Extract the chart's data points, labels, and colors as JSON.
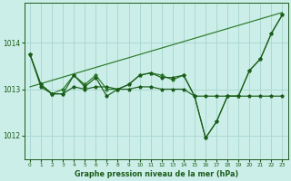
{
  "title": "Graphe pression niveau de la mer (hPa)",
  "background_color": "#cceee8",
  "grid_color": "#aad8d2",
  "line_dark": "#1a5c1a",
  "line_mid": "#2a7a2a",
  "x_labels": [
    "0",
    "1",
    "2",
    "3",
    "4",
    "5",
    "6",
    "7",
    "8",
    "9",
    "10",
    "11",
    "12",
    "13",
    "14",
    "15",
    "16",
    "17",
    "18",
    "19",
    "20",
    "21",
    "22",
    "23"
  ],
  "yticks": [
    1012,
    1013,
    1014
  ],
  "ylim": [
    1011.5,
    1014.85
  ],
  "trend": [
    1013.05,
    1014.65
  ],
  "s1": [
    1013.75,
    1013.1,
    1012.9,
    1012.9,
    1013.3,
    1013.05,
    1013.25,
    1012.85,
    1013.0,
    1013.1,
    1013.3,
    1013.35,
    1013.25,
    1013.25,
    1013.3,
    1012.85,
    1011.95,
    1012.3,
    1012.85,
    1012.85,
    1013.4,
    1013.65,
    1014.2,
    1014.6
  ],
  "s2": [
    1013.75,
    1013.05,
    1012.9,
    1012.9,
    1013.05,
    1013.0,
    1013.05,
    1013.05,
    1013.0,
    1013.0,
    1013.05,
    1013.05,
    1013.0,
    1013.0,
    1013.0,
    1012.85,
    1012.85,
    1012.85,
    1012.85,
    1012.85,
    1012.85,
    1012.85,
    1012.85,
    1012.85
  ],
  "s3": [
    1013.75,
    1013.1,
    1012.9,
    1013.0,
    1013.3,
    1013.1,
    1013.3,
    1013.0,
    1013.0,
    1013.1,
    1013.3,
    1013.35,
    1013.3,
    1013.2,
    1013.3,
    1012.85,
    1011.95,
    1012.3,
    1012.85,
    1012.85,
    1013.4,
    1013.65,
    1014.2,
    1014.6
  ]
}
